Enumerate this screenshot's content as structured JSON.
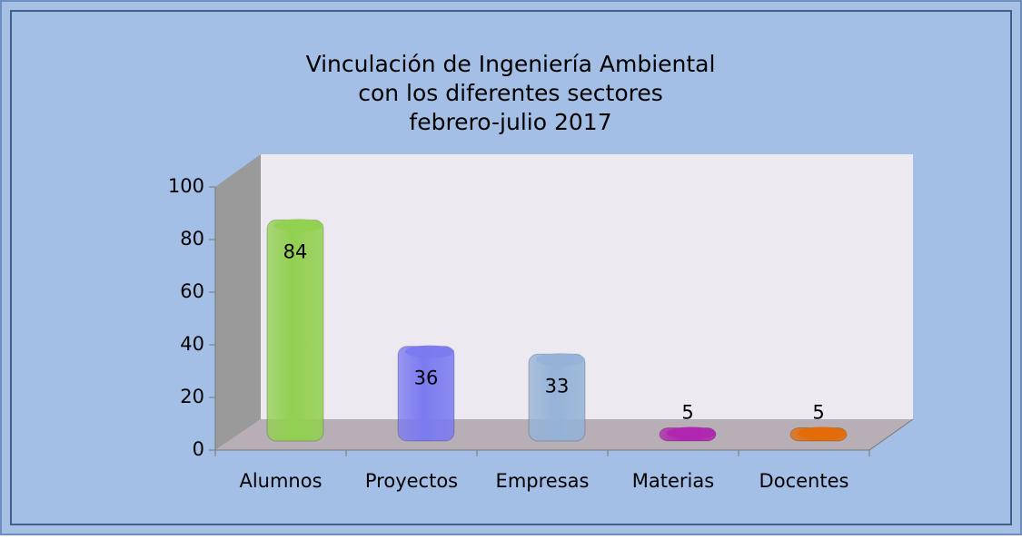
{
  "chart_data": {
    "type": "bar3d",
    "title": [
      "Vinculación de Ingeniería Ambiental",
      "con los diferentes sectores",
      "febrero-julio 2017"
    ],
    "categories": [
      "Alumnos",
      "Proyectos",
      "Empresas",
      "Materias",
      "Docentes"
    ],
    "values": [
      84,
      36,
      33,
      5,
      5
    ],
    "colors": [
      "#92d050",
      "#7b7bf0",
      "#95b3d7",
      "#b026b0",
      "#e36c09"
    ],
    "ylim": [
      0,
      100
    ],
    "yticks": [
      0,
      20,
      40,
      60,
      80,
      100
    ]
  }
}
